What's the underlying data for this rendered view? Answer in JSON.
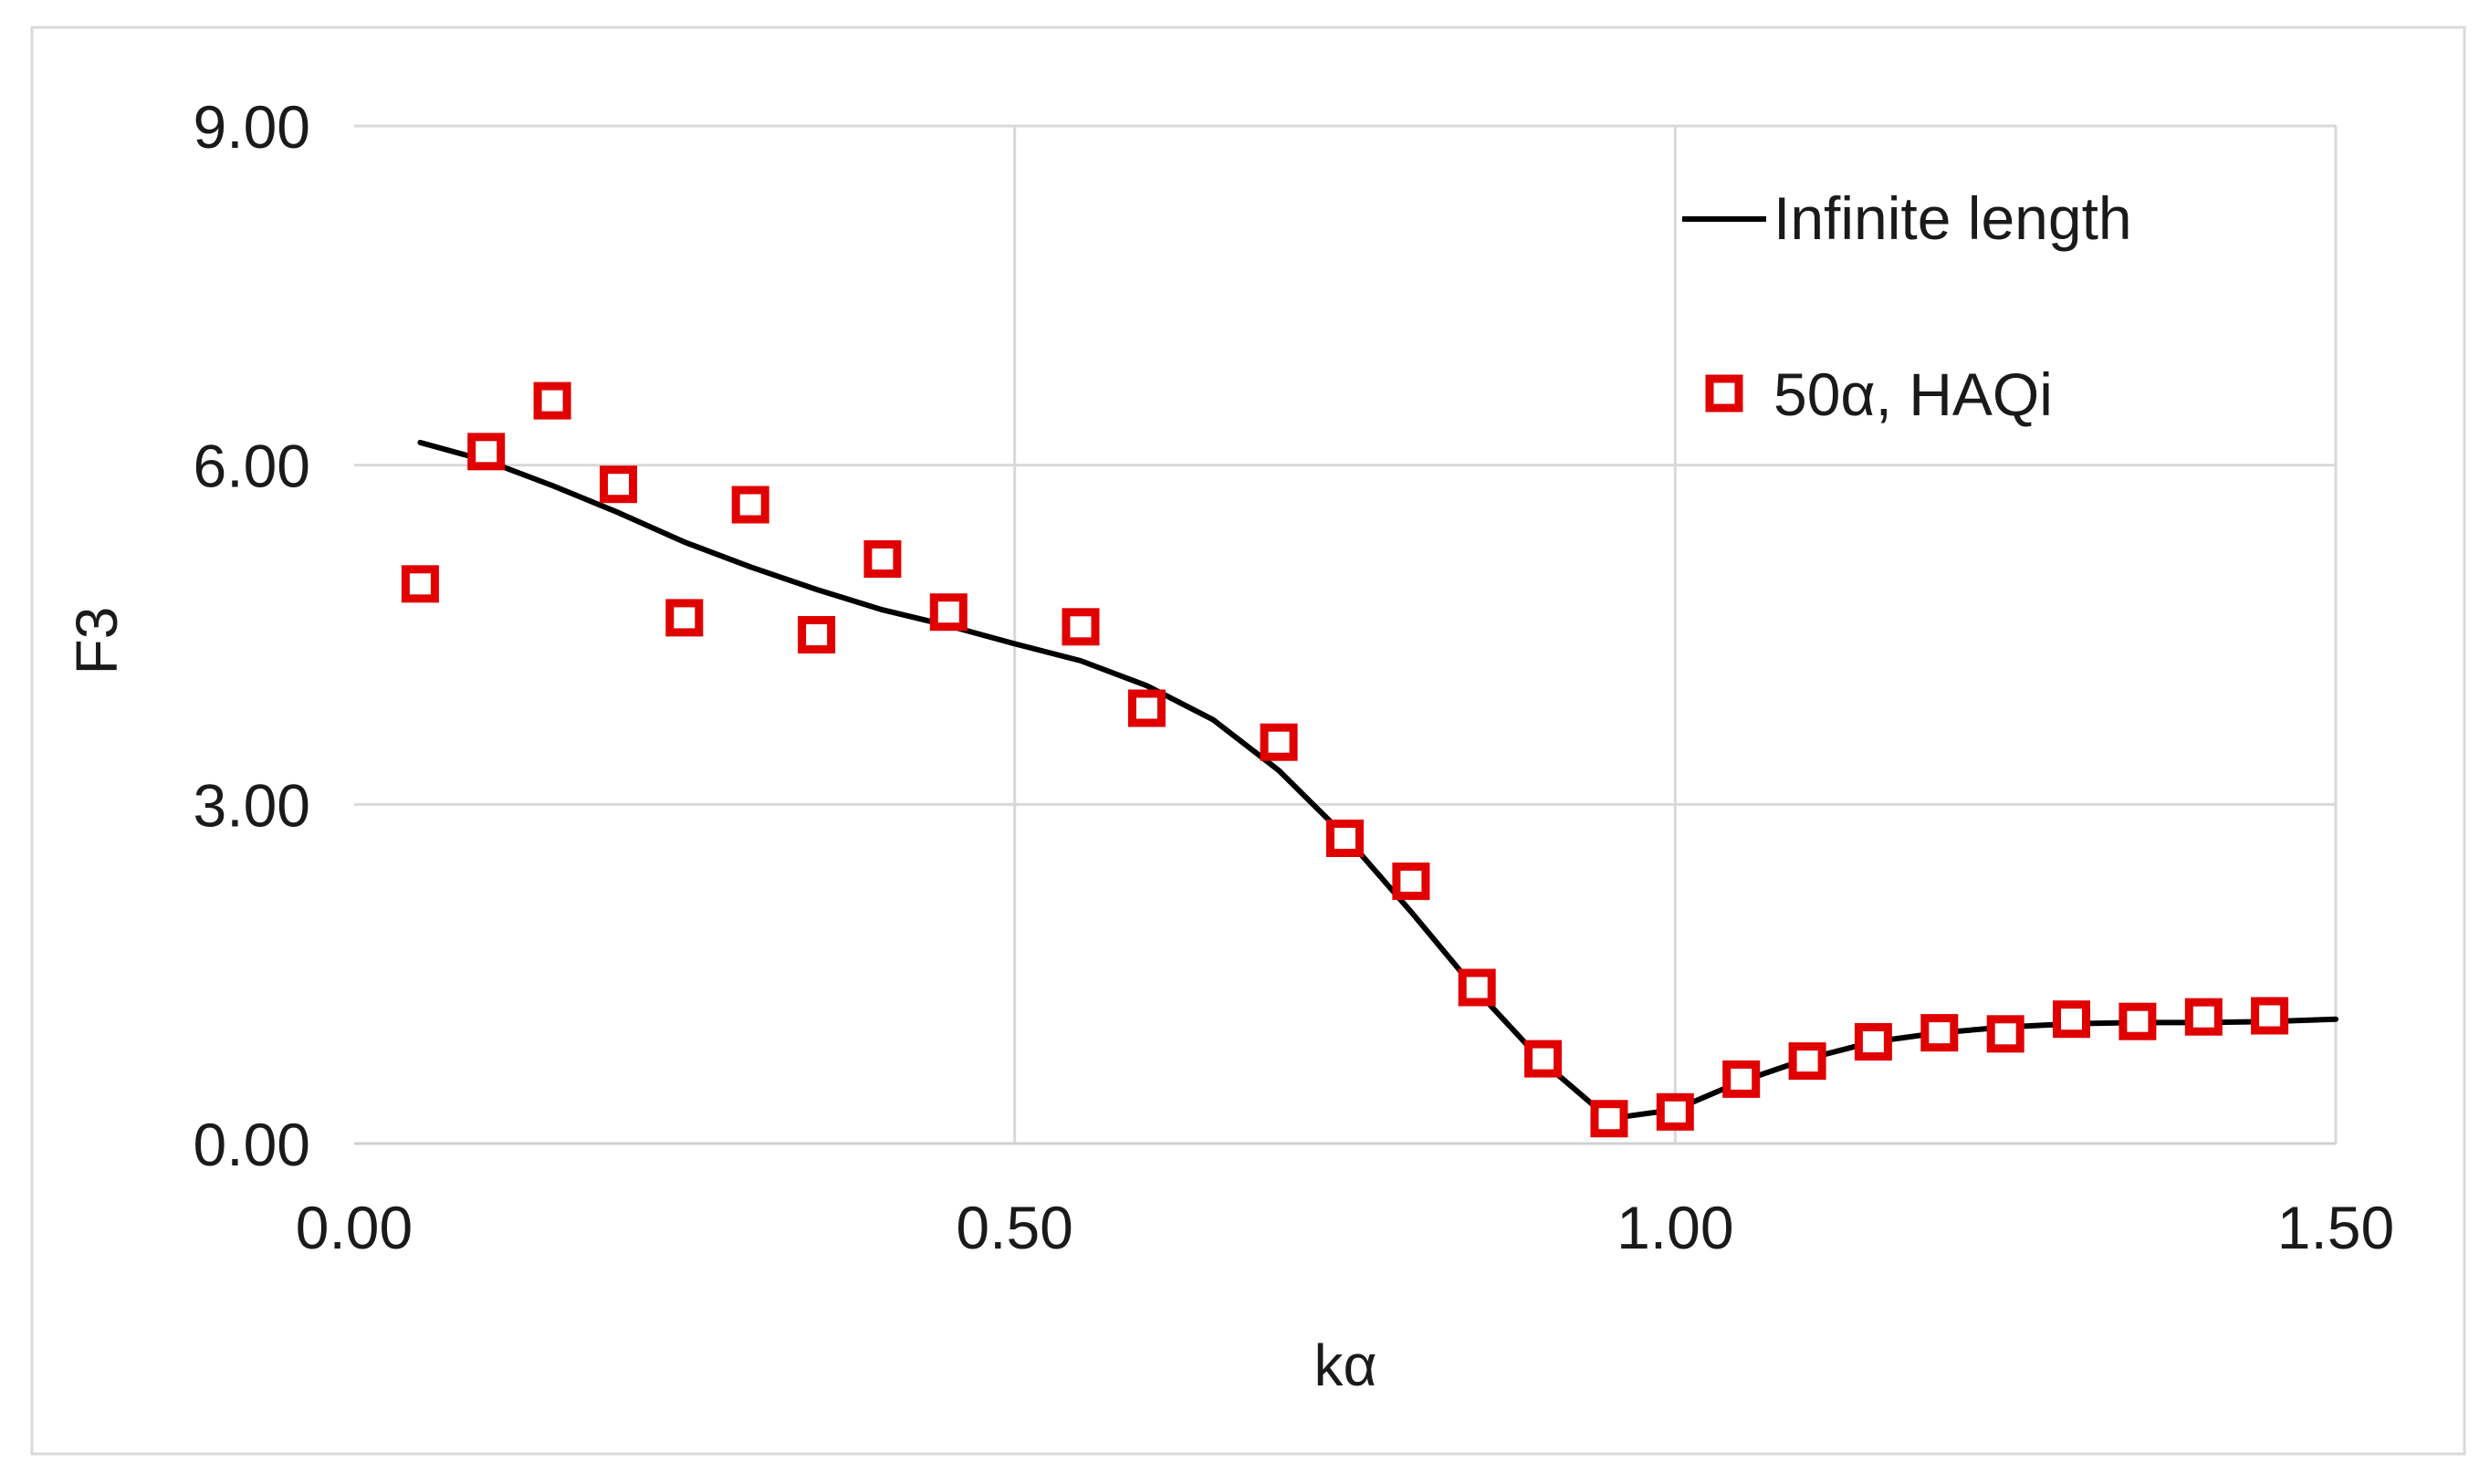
{
  "chart_data": {
    "type": "scatter",
    "title": "",
    "xlabel": "kα",
    "ylabel": "F3",
    "xlim": [
      0,
      1.5
    ],
    "ylim": [
      0,
      9
    ],
    "xticks": [
      "0.00",
      "0.50",
      "1.00",
      "1.50"
    ],
    "yticks": [
      "0.00",
      "3.00",
      "6.00",
      "9.00"
    ],
    "grid": true,
    "legend_position": "top-right",
    "series": [
      {
        "name": "Infinite length",
        "kind": "line",
        "color": "#000000",
        "x": [
          0.05,
          0.1,
          0.15,
          0.2,
          0.25,
          0.3,
          0.35,
          0.4,
          0.45,
          0.5,
          0.55,
          0.6,
          0.65,
          0.7,
          0.75,
          0.8,
          0.85,
          0.9,
          0.95,
          1.0,
          1.05,
          1.1,
          1.15,
          1.2,
          1.25,
          1.3,
          1.35,
          1.4,
          1.45,
          1.5
        ],
        "y": [
          6.2,
          6.04,
          5.82,
          5.58,
          5.32,
          5.1,
          4.9,
          4.72,
          4.58,
          4.42,
          4.27,
          4.05,
          3.75,
          3.3,
          2.72,
          2.05,
          1.35,
          0.72,
          0.22,
          0.3,
          0.55,
          0.75,
          0.9,
          0.98,
          1.03,
          1.06,
          1.07,
          1.07,
          1.08,
          1.1
        ]
      },
      {
        "name": "50α, HAQi",
        "kind": "marker",
        "color": "#e00000",
        "x": [
          0.05,
          0.1,
          0.15,
          0.2,
          0.25,
          0.3,
          0.35,
          0.4,
          0.45,
          0.55,
          0.6,
          0.7,
          0.75,
          0.8,
          0.85,
          0.9,
          0.95,
          1.0,
          1.05,
          1.1,
          1.15,
          1.2,
          1.25,
          1.3,
          1.35,
          1.4,
          1.45
        ],
        "y": [
          4.95,
          6.12,
          6.57,
          5.83,
          4.65,
          5.65,
          4.5,
          5.17,
          4.7,
          4.57,
          3.85,
          3.55,
          2.7,
          2.32,
          1.38,
          0.75,
          0.22,
          0.28,
          0.57,
          0.73,
          0.9,
          0.98,
          0.97,
          1.1,
          1.08,
          1.12,
          1.13
        ]
      }
    ]
  }
}
